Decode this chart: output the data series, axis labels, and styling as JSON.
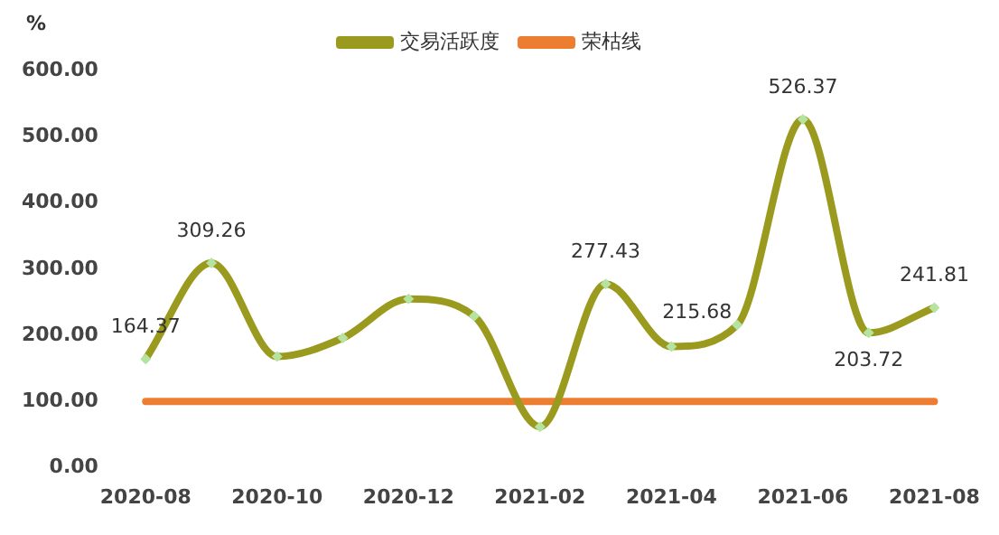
{
  "chart_data": {
    "type": "line",
    "ylabel": "%",
    "categories": [
      "2020-08",
      null,
      "2020-10",
      null,
      "2020-12",
      null,
      "2021-02",
      null,
      "2021-04",
      null,
      "2021-06",
      null,
      "2021-08"
    ],
    "series": [
      {
        "name": "交易活跃度",
        "color": "#9a9a1e",
        "values": [
          164.37,
          309.26,
          168,
          196,
          255,
          229,
          62,
          277.43,
          183,
          215.68,
          526.37,
          203.72,
          241.81
        ],
        "value_labels": [
          "164.37",
          "309.26",
          null,
          null,
          null,
          null,
          null,
          "277.43",
          null,
          "215.68",
          "526.37",
          "203.72",
          "241.81"
        ]
      },
      {
        "name": "荣枯线",
        "color": "#ed7d31",
        "marker": "none",
        "values": [
          100,
          100,
          100,
          100,
          100,
          100,
          100,
          100,
          100,
          100,
          100,
          100,
          100
        ]
      }
    ],
    "ylim": [
      0,
      600
    ],
    "yticks": [
      {
        "value": 0,
        "label": "0.00"
      },
      {
        "value": 100,
        "label": "100.00"
      },
      {
        "value": 200,
        "label": "200.00"
      },
      {
        "value": 300,
        "label": "300.00"
      },
      {
        "value": 400,
        "label": "400.00"
      },
      {
        "value": 500,
        "label": "500.00"
      },
      {
        "value": 600,
        "label": "600.00"
      }
    ],
    "grid": false,
    "legend": "top",
    "marker": "diamond"
  }
}
